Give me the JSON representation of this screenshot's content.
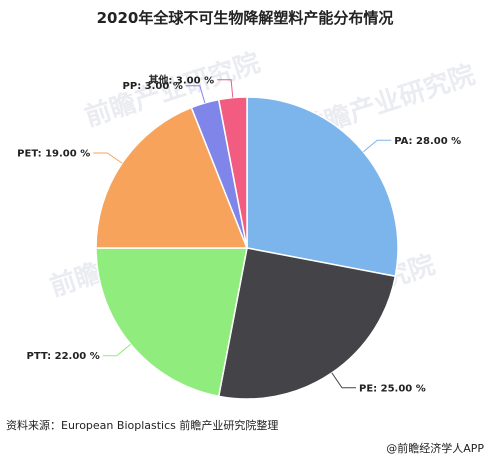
{
  "chart_data": {
    "type": "pie",
    "title": "2020年全球不可生物降解塑料产能分布情况",
    "slices": [
      {
        "label": "PA",
        "value": 28.0,
        "display": "PA: 28.00 %",
        "color": "#7cb5ec"
      },
      {
        "label": "PE",
        "value": 25.0,
        "display": "PE: 25.00 %",
        "color": "#434348"
      },
      {
        "label": "PTT",
        "value": 22.0,
        "display": "PTT: 22.00 %",
        "color": "#90ed7d"
      },
      {
        "label": "PET",
        "value": 19.0,
        "display": "PET: 19.00 %",
        "color": "#f7a35c"
      },
      {
        "label": "PP",
        "value": 3.0,
        "display": "PP: 3.00 %",
        "color": "#8085e9"
      },
      {
        "label": "其他",
        "value": 3.0,
        "display": "其他: 3.00 %",
        "color": "#f15c80"
      }
    ],
    "start_angle": "12 o'clock, clockwise",
    "legend": "none (inline labels)"
  },
  "source": "资料来源：European Bioplastics 前瞻产业研究院整理",
  "brand": "@前瞻经济学人APP",
  "watermark": "前瞻产业研究院"
}
